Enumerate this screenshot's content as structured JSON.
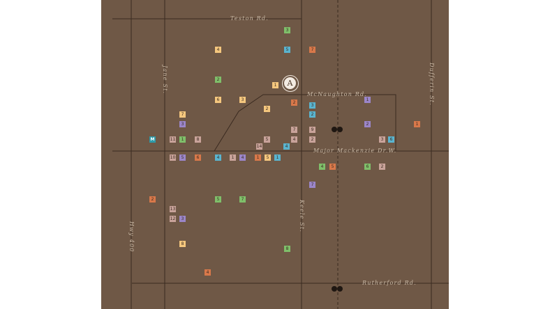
{
  "colors": {
    "background": "#6f5846",
    "road": "#3a2a20",
    "label": "#c9b9a6",
    "green": "#7fbf6a",
    "yellow": "#f5c77e",
    "orange": "#d8784a",
    "blue": "#5ab4cf",
    "purple": "#9b86c9",
    "pink": "#c9a39a",
    "teal": "#2f9aa8"
  },
  "roads": {
    "teston": "Teston Rd.",
    "mcnaughton": "McNaughton Rd.",
    "major_mackenzie": "Major Mackenzie Dr.W.",
    "rutherford": "Rutherford Rd.",
    "jane": "Jane St.",
    "keele": "Keele St.",
    "dufferin": "Dufferin St.",
    "hwy400": "Hwy 400"
  },
  "anchor": {
    "label": "A"
  },
  "go_icon": "go-transit-icon",
  "markers": [
    {
      "label": "3",
      "color": "green"
    },
    {
      "label": "4",
      "color": "yellow"
    },
    {
      "label": "5",
      "color": "blue"
    },
    {
      "label": "7",
      "color": "orange"
    },
    {
      "label": "1",
      "color": "yellow"
    },
    {
      "label": "2",
      "color": "green"
    },
    {
      "label": "6",
      "color": "yellow"
    },
    {
      "label": "3",
      "color": "yellow"
    },
    {
      "label": "2",
      "color": "orange"
    },
    {
      "label": "2",
      "color": "yellow"
    },
    {
      "label": "1",
      "color": "purple"
    },
    {
      "label": "3",
      "color": "blue"
    },
    {
      "label": "2",
      "color": "blue"
    },
    {
      "label": "7",
      "color": "yellow"
    },
    {
      "label": "3",
      "color": "purple"
    },
    {
      "label": "1",
      "color": "orange"
    },
    {
      "label": "2",
      "color": "purple"
    },
    {
      "label": "M",
      "color": "teal"
    },
    {
      "label": "11",
      "color": "pink"
    },
    {
      "label": "1",
      "color": "green"
    },
    {
      "label": "8",
      "color": "pink"
    },
    {
      "label": "7",
      "color": "pink"
    },
    {
      "label": "9",
      "color": "pink"
    },
    {
      "label": "5",
      "color": "pink"
    },
    {
      "label": "4",
      "color": "pink"
    },
    {
      "label": "2",
      "color": "pink"
    },
    {
      "label": "3",
      "color": "pink"
    },
    {
      "label": "6",
      "color": "blue"
    },
    {
      "label": "14",
      "color": "pink"
    },
    {
      "label": "4",
      "color": "blue"
    },
    {
      "label": "10",
      "color": "pink"
    },
    {
      "label": "5",
      "color": "purple"
    },
    {
      "label": "6",
      "color": "orange"
    },
    {
      "label": "4",
      "color": "blue"
    },
    {
      "label": "1",
      "color": "pink"
    },
    {
      "label": "4",
      "color": "purple"
    },
    {
      "label": "1",
      "color": "orange"
    },
    {
      "label": "5",
      "color": "yellow"
    },
    {
      "label": "1",
      "color": "blue"
    },
    {
      "label": "4",
      "color": "green"
    },
    {
      "label": "5",
      "color": "orange"
    },
    {
      "label": "6",
      "color": "green"
    },
    {
      "label": "2",
      "color": "pink"
    },
    {
      "label": "7",
      "color": "purple"
    },
    {
      "label": "2",
      "color": "orange"
    },
    {
      "label": "5",
      "color": "green"
    },
    {
      "label": "7",
      "color": "green"
    },
    {
      "label": "13",
      "color": "pink"
    },
    {
      "label": "12",
      "color": "pink"
    },
    {
      "label": "3",
      "color": "purple"
    },
    {
      "label": "8",
      "color": "yellow"
    },
    {
      "label": "8",
      "color": "green"
    },
    {
      "label": "4",
      "color": "orange"
    }
  ]
}
